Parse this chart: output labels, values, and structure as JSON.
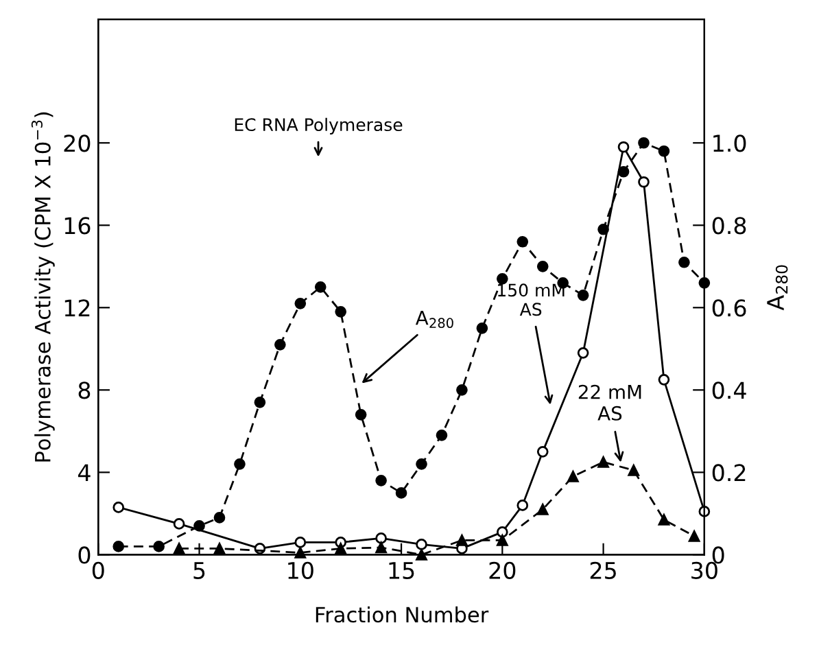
{
  "chart_data": {
    "type": "line",
    "xlabel": "Fraction Number",
    "ylabel": "Polymerase Activity (CPM X 10$^{−3}$)",
    "y2label": "A$_{280}$",
    "xlim": [
      0,
      30
    ],
    "xticks": [
      0,
      5,
      10,
      15,
      20,
      25,
      30
    ],
    "ylim": [
      0,
      26
    ],
    "yticks": [
      0,
      4,
      8,
      12,
      16,
      20
    ],
    "y2lim": [
      0,
      1.3
    ],
    "y2ticks": [
      0,
      0.2,
      0.4,
      0.6,
      0.8,
      {
        "value": 1.0,
        "label": "1.0"
      }
    ],
    "grid": false,
    "series": [
      {
        "color": "#000000",
        "axis": "y2",
        "marker": "circle",
        "line_style": "dashed",
        "x": [
          1,
          3,
          5,
          6,
          7,
          8,
          9,
          10,
          11,
          12,
          13,
          14,
          15,
          16,
          17,
          18,
          19,
          20,
          21,
          22,
          23,
          24,
          25,
          26,
          27,
          28,
          29,
          30
        ],
        "values": [
          0.02,
          0.02,
          0.07,
          0.09,
          0.22,
          0.37,
          0.51,
          0.61,
          0.65,
          0.59,
          0.34,
          0.18,
          0.15,
          0.22,
          0.29,
          0.4,
          0.55,
          0.67,
          0.76,
          0.7,
          0.66,
          0.63,
          0.79,
          0.93,
          1.0,
          0.98,
          0.71,
          0.66
        ]
      },
      {
        "color": "#000000",
        "marker": "circle",
        "line_style": "solid",
        "x": [
          1,
          4,
          8,
          10,
          12,
          14,
          16,
          18,
          20,
          21,
          22,
          24,
          26,
          27,
          28,
          30
        ],
        "values": [
          2.3,
          1.5,
          0.3,
          0.6,
          0.6,
          0.8,
          0.5,
          0.3,
          1.1,
          2.4,
          5.0,
          9.8,
          19.8,
          18.1,
          8.5,
          2.1
        ]
      },
      {
        "color": "#000000",
        "marker": "triangle",
        "line_style": "dashed",
        "x": [
          4,
          6,
          10,
          12,
          14,
          16,
          18,
          20,
          22,
          23.5,
          25,
          26.5,
          28,
          29.5
        ],
        "values": [
          0.3,
          0.3,
          0.1,
          0.3,
          0.35,
          0,
          0.7,
          0.7,
          2.2,
          3.8,
          4.5,
          4.1,
          1.7,
          0.9
        ]
      }
    ],
    "annotations": [
      "EC RNA Polymerase",
      {
        "text": "A$_{280}$",
        "x": 12.9,
        "y": 8.2
      },
      "150 mM\nAS",
      {
        "text": "22 mM\nAS",
        "x": 25.9,
        "y": 4.3
      }
    ]
  }
}
